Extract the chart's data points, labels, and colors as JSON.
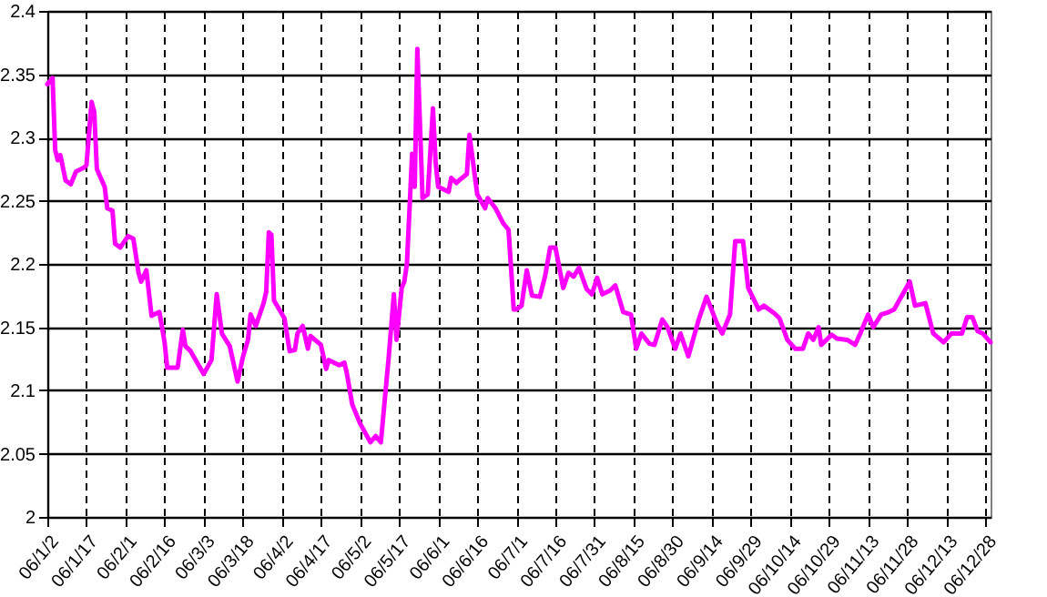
{
  "chart_data": {
    "type": "line",
    "grid": true,
    "line_style": "solid",
    "marker": "none",
    "xlim": [
      "--01-02",
      "--12-30"
    ],
    "ylim": [
      2,
      2.4
    ],
    "yticks": [
      2,
      2.05,
      2.1,
      2.15,
      2.2,
      2.25,
      2.3,
      2.35,
      2.4
    ],
    "xticks": [
      {
        "value": "--01-02",
        "label": "06/1/2"
      },
      {
        "value": "--01-17",
        "label": "06/1/17"
      },
      {
        "value": "--02-01",
        "label": "06/2/1"
      },
      {
        "value": "--02-16",
        "label": "06/2/16"
      },
      {
        "value": "--03-03",
        "label": "06/3/3"
      },
      {
        "value": "--03-18",
        "label": "06/3/18"
      },
      {
        "value": "--04-02",
        "label": "06/4/2"
      },
      {
        "value": "--04-17",
        "label": "06/4/17"
      },
      {
        "value": "--05-02",
        "label": "06/5/2"
      },
      {
        "value": "--05-17",
        "label": "06/5/17"
      },
      {
        "value": "--06-01",
        "label": "06/6/1"
      },
      {
        "value": "--06-16",
        "label": "06/6/16"
      },
      {
        "value": "--07-01",
        "label": "06/7/1"
      },
      {
        "value": "--07-16",
        "label": "06/7/16"
      },
      {
        "value": "--07-31",
        "label": "06/7/31"
      },
      {
        "value": "--08-15",
        "label": "06/8/15"
      },
      {
        "value": "--08-30",
        "label": "06/8/30"
      },
      {
        "value": "--09-14",
        "label": "06/9/14"
      },
      {
        "value": "--09-29",
        "label": "06/9/29"
      },
      {
        "value": "--10-14",
        "label": "06/10/14"
      },
      {
        "value": "--10-29",
        "label": "06/10/29"
      },
      {
        "value": "--11-13",
        "label": "06/11/13"
      },
      {
        "value": "--11-28",
        "label": "06/11/28"
      },
      {
        "value": "--12-13",
        "label": "06/12/13"
      },
      {
        "value": "--12-28",
        "label": "06/12/28"
      }
    ],
    "x": [
      "--01-02",
      "--01-04",
      "--01-05",
      "--01-06",
      "--01-07",
      "--01-09",
      "--01-11",
      "--01-13",
      "--01-16",
      "--01-17",
      "--01-19",
      "--01-20",
      "--01-21",
      "--01-24",
      "--01-25",
      "--01-27",
      "--01-28",
      "--01-30",
      "--02-02",
      "--02-04",
      "--02-06",
      "--02-07",
      "--02-09",
      "--02-11",
      "--02-12",
      "--02-14",
      "--02-16",
      "--02-17",
      "--02-21",
      "--02-23",
      "--02-24",
      "--02-26",
      "--03-03",
      "--03-06",
      "--03-08",
      "--03-10",
      "--03-13",
      "--03-16",
      "--03-18",
      "--03-20",
      "--03-21",
      "--03-23",
      "--03-26",
      "--03-27",
      "--03-28",
      "--03-29",
      "--03-30",
      "--04-03",
      "--04-05",
      "--04-07",
      "--04-08",
      "--04-10",
      "--04-12",
      "--04-13",
      "--04-17",
      "--04-19",
      "--04-20",
      "--04-24",
      "--04-26",
      "--04-27",
      "--04-29",
      "--05-02",
      "--05-06",
      "--05-08",
      "--05-10",
      "--05-13",
      "--05-15",
      "--05-16",
      "--05-18",
      "--05-19",
      "--05-20",
      "--05-22",
      "--05-23",
      "--05-24",
      "--05-26",
      "--05-28",
      "--05-30",
      "--05-31",
      "--06-01",
      "--06-05",
      "--06-06",
      "--06-08",
      "--06-09",
      "--06-12",
      "--06-13",
      "--06-16",
      "--06-19",
      "--06-20",
      "--06-23",
      "--06-26",
      "--06-28",
      "--06-29",
      "--06-30",
      "--07-01",
      "--07-03",
      "--07-05",
      "--07-07",
      "--07-10",
      "--07-12",
      "--07-14",
      "--07-16",
      "--07-19",
      "--07-21",
      "--07-23",
      "--07-25",
      "--07-28",
      "--07-30",
      "--08-01",
      "--08-03",
      "--08-06",
      "--08-08",
      "--08-11",
      "--08-14",
      "--08-16",
      "--08-18",
      "--08-21",
      "--08-23",
      "--08-26",
      "--08-28",
      "--08-31",
      "--09-02",
      "--09-05",
      "--09-09",
      "--09-12",
      "--09-16",
      "--09-18",
      "--09-21",
      "--09-23",
      "--09-26",
      "--09-28",
      "--10-02",
      "--10-04",
      "--10-08",
      "--10-10",
      "--10-13",
      "--10-16",
      "--10-19",
      "--10-21",
      "--10-23",
      "--10-25",
      "--10-26",
      "--10-30",
      "--11-01",
      "--11-05",
      "--11-08",
      "--11-10",
      "--11-13",
      "--11-15",
      "--11-18",
      "--11-21",
      "--11-23",
      "--11-29",
      "--12-01",
      "--12-05",
      "--12-08",
      "--12-12",
      "--12-15",
      "--12-19",
      "--12-21",
      "--12-23",
      "--12-25",
      "--12-27",
      "--12-30"
    ],
    "series": [
      {
        "color": "#ff00ff",
        "values": [
          2.342,
          2.347,
          2.29,
          2.282,
          2.286,
          2.266,
          2.263,
          2.273,
          2.276,
          2.278,
          2.328,
          2.32,
          2.275,
          2.261,
          2.244,
          2.242,
          2.216,
          2.213,
          2.222,
          2.22,
          2.193,
          2.186,
          2.195,
          2.159,
          2.16,
          2.162,
          2.138,
          2.118,
          2.118,
          2.148,
          2.135,
          2.131,
          2.113,
          2.124,
          2.176,
          2.145,
          2.135,
          2.107,
          2.126,
          2.14,
          2.16,
          2.151,
          2.169,
          2.178,
          2.225,
          2.223,
          2.171,
          2.157,
          2.131,
          2.132,
          2.145,
          2.151,
          2.133,
          2.143,
          2.136,
          2.117,
          2.124,
          2.12,
          2.122,
          2.113,
          2.089,
          2.074,
          2.059,
          2.064,
          2.059,
          2.126,
          2.176,
          2.14,
          2.181,
          2.186,
          2.2,
          2.287,
          2.261,
          2.37,
          2.252,
          2.255,
          2.323,
          2.281,
          2.261,
          2.257,
          2.268,
          2.264,
          2.266,
          2.271,
          2.302,
          2.255,
          2.244,
          2.252,
          2.244,
          2.232,
          2.227,
          2.196,
          2.164,
          2.164,
          2.167,
          2.195,
          2.175,
          2.174,
          2.19,
          2.213,
          2.213,
          2.181,
          2.193,
          2.19,
          2.197,
          2.18,
          2.176,
          2.189,
          2.176,
          2.179,
          2.183,
          2.162,
          2.16,
          2.133,
          2.145,
          2.137,
          2.136,
          2.156,
          2.15,
          2.133,
          2.145,
          2.127,
          2.156,
          2.174,
          2.153,
          2.145,
          2.16,
          2.218,
          2.218,
          2.181,
          2.164,
          2.167,
          2.161,
          2.157,
          2.14,
          2.133,
          2.133,
          2.145,
          2.14,
          2.15,
          2.136,
          2.144,
          2.141,
          2.14,
          2.136,
          2.145,
          2.16,
          2.15,
          2.16,
          2.162,
          2.164,
          2.186,
          2.167,
          2.169,
          2.145,
          2.138,
          2.145,
          2.145,
          2.158,
          2.158,
          2.147,
          2.145,
          2.138
        ]
      }
    ]
  }
}
